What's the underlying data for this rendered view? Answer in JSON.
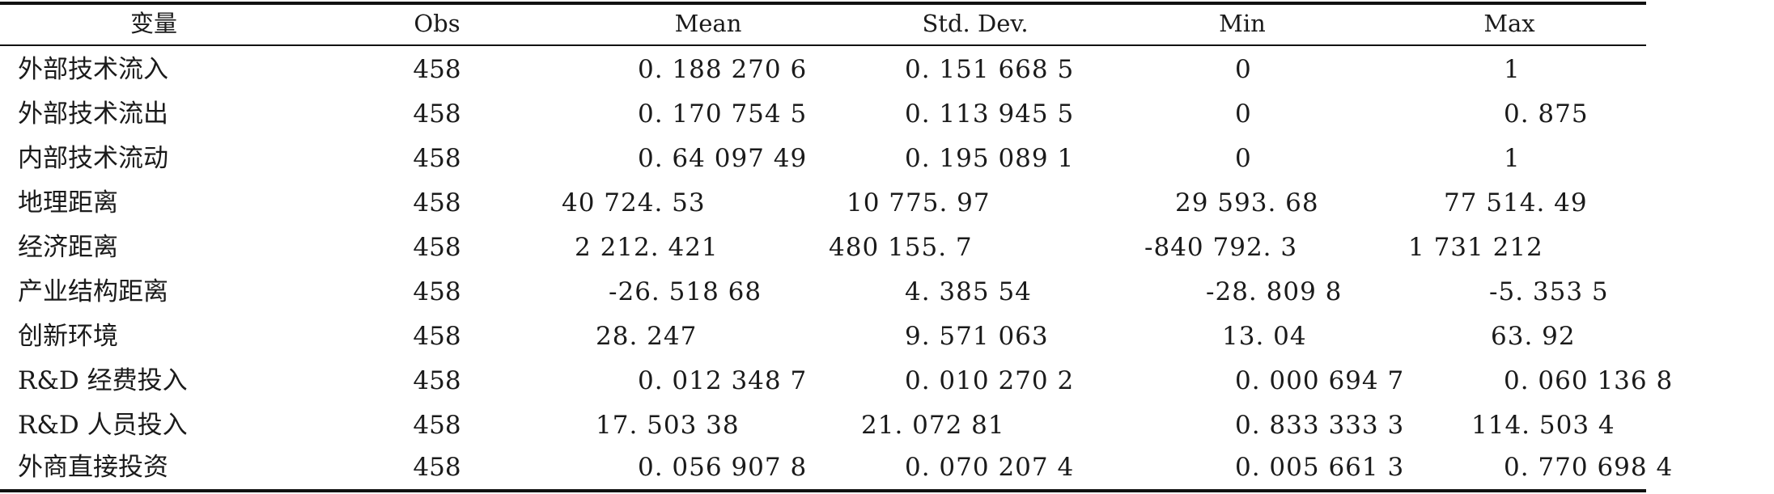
{
  "table": {
    "headers": {
      "variable": "变量",
      "obs": "Obs",
      "mean": "Mean",
      "std": "Std. Dev.",
      "min": "Min",
      "max": "Max"
    },
    "rows": [
      {
        "variable": "外部技术流入",
        "obs": "458",
        "mean": "0. 188 270 6",
        "std": "0. 151 668 5",
        "min": "0",
        "max": "1"
      },
      {
        "variable": "外部技术流出",
        "obs": "458",
        "mean": "0. 170 754 5",
        "std": "0. 113 945 5",
        "min": "0",
        "max": "0. 875"
      },
      {
        "variable": "内部技术流动",
        "obs": "458",
        "mean": "0. 64 097 49",
        "std": "0. 195 089 1",
        "min": "0",
        "max": "1"
      },
      {
        "variable": "地理距离",
        "obs": "458",
        "mean": "40 724. 53",
        "std": "10 775. 97",
        "min": "29 593. 68",
        "max": "77 514. 49"
      },
      {
        "variable": "经济距离",
        "obs": "458",
        "mean": "2 212. 421",
        "std": "480 155. 7",
        "min": "-840 792. 3",
        "max": "1 731 212"
      },
      {
        "variable": "产业结构距离",
        "obs": "458",
        "mean": "-26. 518 68",
        "std": "4. 385 54",
        "min": "-28. 809 8",
        "max": "-5. 353 5"
      },
      {
        "variable": "创新环境",
        "obs": "458",
        "mean": "28. 247",
        "std": "9. 571 063",
        "min": "13. 04",
        "max": "63. 92"
      },
      {
        "variable": "R&D 经费投入",
        "obs": "458",
        "mean": "0. 012 348 7",
        "std": "0. 010 270 2",
        "min": "0. 000 694 7",
        "max": "0. 060 136 8"
      },
      {
        "variable": "R&D 人员投入",
        "obs": "458",
        "mean": "17. 503 38",
        "std": "21. 072 81",
        "min": "0. 833 333 3",
        "max": "114. 503 4"
      },
      {
        "variable": "外商直接投资",
        "obs": "458",
        "mean": "0. 056 907 8",
        "std": "0. 070 207 4",
        "min": "0. 005 661 3",
        "max": "0. 770 698 4"
      }
    ]
  }
}
